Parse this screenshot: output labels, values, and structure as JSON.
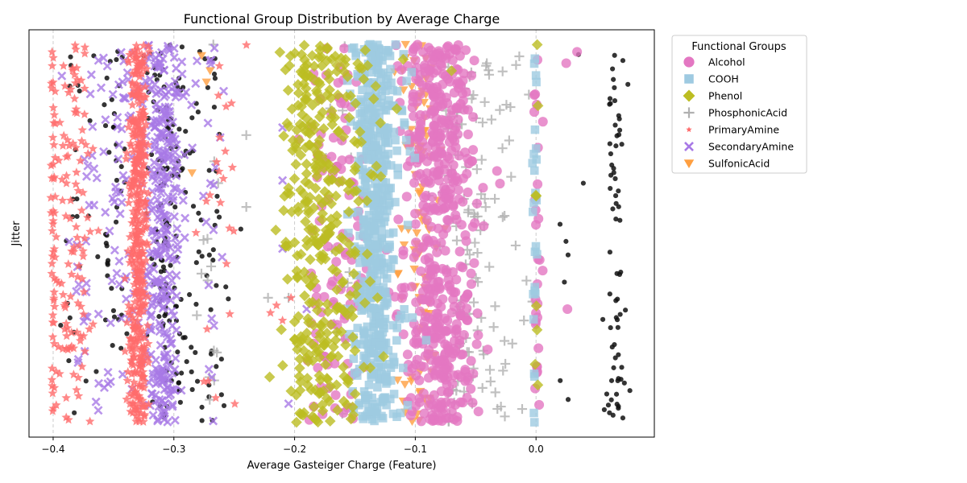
{
  "chart_data": {
    "type": "scatter",
    "title": "Functional Group Distribution by Average Charge",
    "xlabel": "Average Gasteiger Charge (Feature)",
    "ylabel": "Jitter",
    "xlim": [
      -0.42,
      0.098
    ],
    "ylim": [
      0,
      1
    ],
    "xticks": [
      -0.4,
      -0.3,
      -0.2,
      -0.1,
      0.0
    ],
    "xtick_labels": [
      "−0.4",
      "−0.3",
      "−0.2",
      "−0.1",
      "0.0"
    ],
    "grid_x": true,
    "legend": {
      "title": "Functional Groups",
      "placement": "upper-right-outside"
    },
    "series": [
      {
        "name": "Alcohol",
        "color": "#e377c2",
        "marker": "circle",
        "clusters": [
          {
            "center": -0.08,
            "spread": 0.014,
            "count": 520
          },
          {
            "center": -0.165,
            "spread": 0.012,
            "count": 110
          },
          {
            "center": 0.0,
            "spread": 0.002,
            "count": 28
          },
          {
            "center": -0.055,
            "spread": 0.01,
            "count": 18
          }
        ],
        "points": [
          [
            0.025,
            0.95
          ],
          [
            0.034,
            0.98
          ],
          [
            0.026,
            0.3
          ],
          [
            0.003,
            0.43
          ]
        ]
      },
      {
        "name": "COOH",
        "color": "#9ecae1",
        "marker": "square",
        "clusters": [
          {
            "center": -0.135,
            "spread": 0.008,
            "count": 470
          },
          {
            "center": -0.12,
            "spread": 0.01,
            "count": 60
          },
          {
            "center": -0.001,
            "spread": 0.001,
            "count": 26
          }
        ],
        "points": []
      },
      {
        "name": "Phenol",
        "color": "#bcbd22",
        "marker": "diamond",
        "clusters": [
          {
            "center": -0.185,
            "spread": 0.012,
            "count": 260
          },
          {
            "center": -0.155,
            "spread": 0.012,
            "count": 110
          },
          {
            "center": -0.0,
            "spread": 0.001,
            "count": 8
          }
        ],
        "points": [
          [
            -0.07,
            0.93
          ],
          [
            -0.11,
            0.96
          ]
        ]
      },
      {
        "name": "PhosphonicAcid",
        "color": "#b0b0b0",
        "marker": "plus",
        "clusters": [
          {
            "center": -0.06,
            "spread": 0.012,
            "count": 90
          },
          {
            "center": -0.03,
            "spread": 0.01,
            "count": 30
          },
          {
            "center": -0.27,
            "spread": 0.006,
            "count": 14
          },
          {
            "center": -0.16,
            "spread": 0.01,
            "count": 20
          }
        ],
        "points": [
          [
            -0.222,
            0.33
          ],
          [
            -0.205,
            0.33
          ],
          [
            -0.24,
            0.57
          ],
          [
            -0.24,
            0.76
          ],
          [
            -0.003,
            0.32
          ],
          [
            -0.01,
            0.27
          ]
        ]
      },
      {
        "name": "PrimaryAmine",
        "color": "#ff6b6b",
        "marker": "star",
        "clusters": [
          {
            "center": -0.33,
            "spread": 0.004,
            "count": 430
          },
          {
            "center": -0.385,
            "spread": 0.009,
            "count": 120
          },
          {
            "center": -0.4,
            "spread": 0.001,
            "count": 40
          },
          {
            "center": -0.26,
            "spread": 0.01,
            "count": 24
          }
        ],
        "points": [
          [
            -0.21,
            0.27
          ],
          [
            -0.215,
            0.31
          ],
          [
            -0.22,
            0.29
          ],
          [
            -0.203,
            0.33
          ]
        ]
      },
      {
        "name": "SecondaryAmine",
        "color": "#a879e6",
        "marker": "x",
        "clusters": [
          {
            "center": -0.31,
            "spread": 0.008,
            "count": 330
          },
          {
            "center": -0.345,
            "spread": 0.01,
            "count": 60
          },
          {
            "center": -0.37,
            "spread": 0.008,
            "count": 30
          },
          {
            "center": -0.27,
            "spread": 0.006,
            "count": 22
          }
        ],
        "points": [
          [
            -0.21,
            0.46
          ],
          [
            -0.21,
            0.64
          ],
          [
            -0.21,
            0.78
          ],
          [
            -0.205,
            0.05
          ],
          [
            -0.19,
            0.3
          ]
        ]
      },
      {
        "name": "SulfonicAcid",
        "color": "#ff9f40",
        "marker": "triangle-down",
        "clusters": [
          {
            "center": -0.095,
            "spread": 0.006,
            "count": 90
          },
          {
            "center": -0.11,
            "spread": 0.004,
            "count": 14
          }
        ],
        "points": [
          [
            -0.285,
            0.66
          ],
          [
            -0.273,
            0.9
          ],
          [
            -0.277,
            0.97
          ],
          [
            -0.27,
            0.93
          ]
        ]
      },
      {
        "name": "",
        "color": "#111111",
        "marker": "dot",
        "in_legend": false,
        "clusters": [
          {
            "center": -0.305,
            "spread": 0.01,
            "count": 130
          },
          {
            "center": -0.27,
            "spread": 0.01,
            "count": 50
          },
          {
            "center": -0.35,
            "spread": 0.006,
            "count": 40
          },
          {
            "center": -0.38,
            "spread": 0.008,
            "count": 24
          },
          {
            "center": 0.065,
            "spread": 0.004,
            "count": 70
          },
          {
            "center": 0.03,
            "spread": 0.008,
            "count": 8
          }
        ],
        "points": []
      }
    ]
  }
}
